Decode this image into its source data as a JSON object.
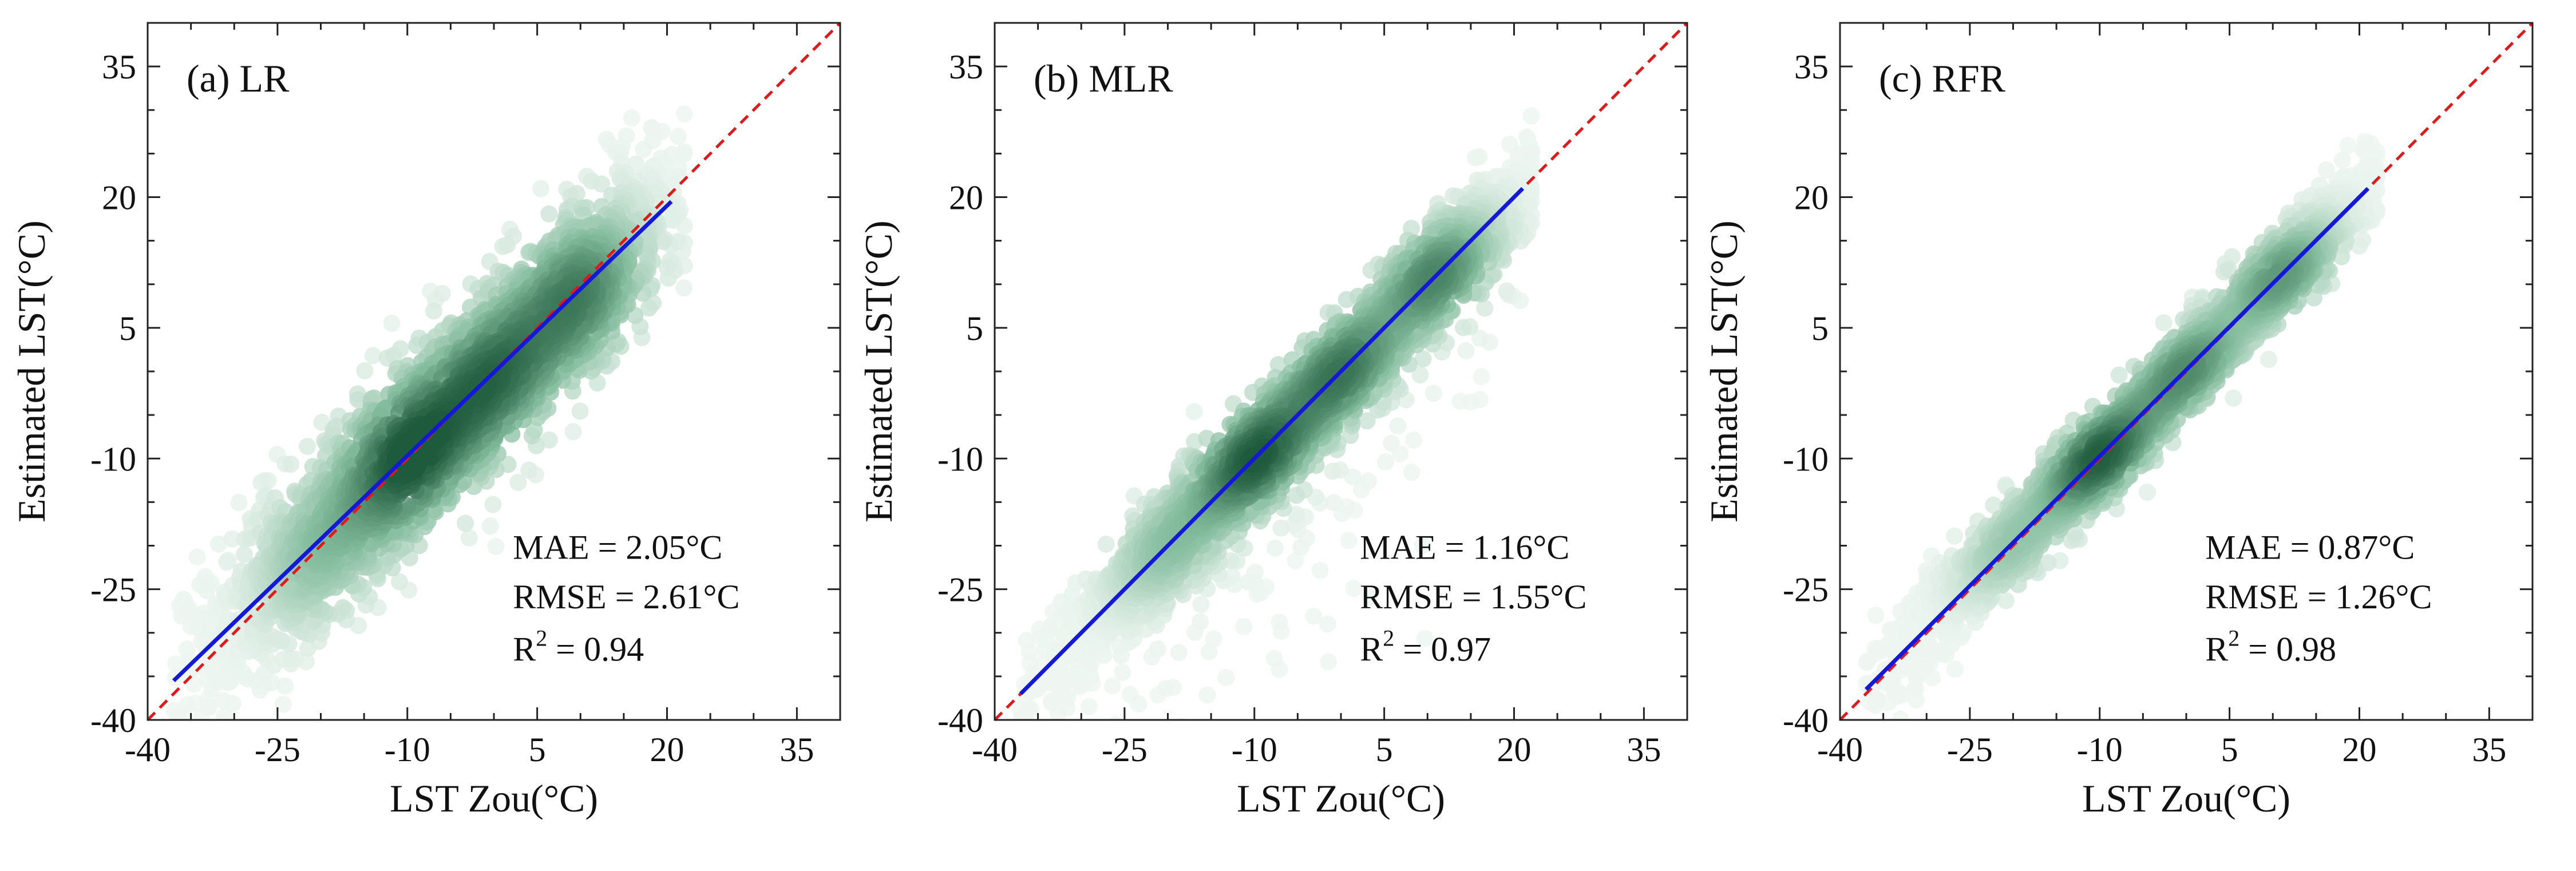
{
  "colors": {
    "one_to_one_line": "#e0191b",
    "fit_line": "#1418d8",
    "density_low": "#eef6f1",
    "density_mid": "#82bb9c",
    "density_high": "#1f5a3c",
    "axis": "#222222"
  },
  "chart_data": [
    {
      "type": "scatter",
      "id": "a",
      "title": "(a) LR",
      "xlabel": "LST Zou(°C)",
      "ylabel": "Estimated LST(°C)",
      "xlim": [
        -40,
        40
      ],
      "ylim": [
        -40,
        40
      ],
      "x_ticks": [
        -40,
        -25,
        -10,
        5,
        20,
        35
      ],
      "y_ticks": [
        -40,
        -25,
        -10,
        5,
        20,
        35
      ],
      "x_tick_labels": [
        "-40",
        "-25",
        "-10",
        "5",
        "20",
        "35"
      ],
      "y_tick_labels": [
        "-40",
        "-25",
        "-10",
        "5",
        "20",
        "35"
      ],
      "one_to_one": {
        "x": [
          -40,
          40
        ],
        "y": [
          -40,
          40
        ],
        "style": "dashed"
      },
      "fit_line": {
        "x": [
          -37,
          20.5
        ],
        "y": [
          -35.5,
          19.5
        ]
      },
      "density_clusters": [
        {
          "x": -10,
          "y": -10,
          "weight": 1.0
        },
        {
          "x": 0,
          "y": -1,
          "weight": 0.85
        },
        {
          "x": 10,
          "y": 9,
          "weight": 0.8
        },
        {
          "x": -20,
          "y": -21,
          "weight": 0.45
        }
      ],
      "scatter_spread": {
        "x_range": [
          -37,
          22
        ],
        "y_scatter": 5.2,
        "outlier_fraction": 0.0
      },
      "stats": {
        "mae": "MAE = 2.05°C",
        "rmse": "RMSE = 2.61°C",
        "r2_prefix": "R",
        "r2_sup": "2",
        "r2_value": " = 0.94"
      }
    },
    {
      "type": "scatter",
      "id": "b",
      "title": "(b) MLR",
      "xlabel": "LST Zou(°C)",
      "ylabel": "Estimated LST(°C)",
      "xlim": [
        -40,
        40
      ],
      "ylim": [
        -40,
        40
      ],
      "x_ticks": [
        -40,
        -25,
        -10,
        5,
        20,
        35
      ],
      "y_ticks": [
        -40,
        -25,
        -10,
        5,
        20,
        35
      ],
      "x_tick_labels": [
        "-40",
        "-25",
        "-10",
        "5",
        "20",
        "35"
      ],
      "y_tick_labels": [
        "-40",
        "-25",
        "-10",
        "5",
        "20",
        "35"
      ],
      "one_to_one": {
        "x": [
          -40,
          40
        ],
        "y": [
          -40,
          40
        ],
        "style": "dashed"
      },
      "fit_line": {
        "x": [
          -37,
          21
        ],
        "y": [
          -37,
          21
        ]
      },
      "density_clusters": [
        {
          "x": -10,
          "y": -10,
          "weight": 1.0
        },
        {
          "x": 0,
          "y": 0,
          "weight": 0.85
        },
        {
          "x": 11,
          "y": 11,
          "weight": 0.8
        },
        {
          "x": -20,
          "y": -20,
          "weight": 0.45
        }
      ],
      "scatter_spread": {
        "x_range": [
          -37,
          22
        ],
        "y_scatter": 3.3,
        "outlier_fraction": 0.06
      },
      "stats": {
        "mae": "MAE = 1.16°C",
        "rmse": "RMSE = 1.55°C",
        "r2_prefix": "R",
        "r2_sup": "2",
        "r2_value": " = 0.97"
      }
    },
    {
      "type": "scatter",
      "id": "c",
      "title": "(c) RFR",
      "xlabel": "LST Zou(°C)",
      "ylabel": "Estimated LST(°C)",
      "xlim": [
        -40,
        40
      ],
      "ylim": [
        -40,
        40
      ],
      "x_ticks": [
        -40,
        -25,
        -10,
        5,
        20,
        35
      ],
      "y_ticks": [
        -40,
        -25,
        -10,
        5,
        20,
        35
      ],
      "x_tick_labels": [
        "-40",
        "-25",
        "-10",
        "5",
        "20",
        "35"
      ],
      "y_tick_labels": [
        "-40",
        "-25",
        "-10",
        "5",
        "20",
        "35"
      ],
      "one_to_one": {
        "x": [
          -40,
          40
        ],
        "y": [
          -40,
          40
        ],
        "style": "dashed"
      },
      "fit_line": {
        "x": [
          -37,
          21
        ],
        "y": [
          -36.5,
          21
        ]
      },
      "density_clusters": [
        {
          "x": -10,
          "y": -10,
          "weight": 1.0
        },
        {
          "x": 0,
          "y": 0,
          "weight": 0.75
        },
        {
          "x": 11,
          "y": 11,
          "weight": 0.7
        },
        {
          "x": -20,
          "y": -20,
          "weight": 0.4
        }
      ],
      "scatter_spread": {
        "x_range": [
          -37,
          22
        ],
        "y_scatter": 2.6,
        "outlier_fraction": 0.0
      },
      "stats": {
        "mae": "MAE = 0.87°C",
        "rmse": "RMSE = 1.26°C",
        "r2_prefix": "R",
        "r2_sup": "2",
        "r2_value": " = 0.98"
      }
    }
  ]
}
